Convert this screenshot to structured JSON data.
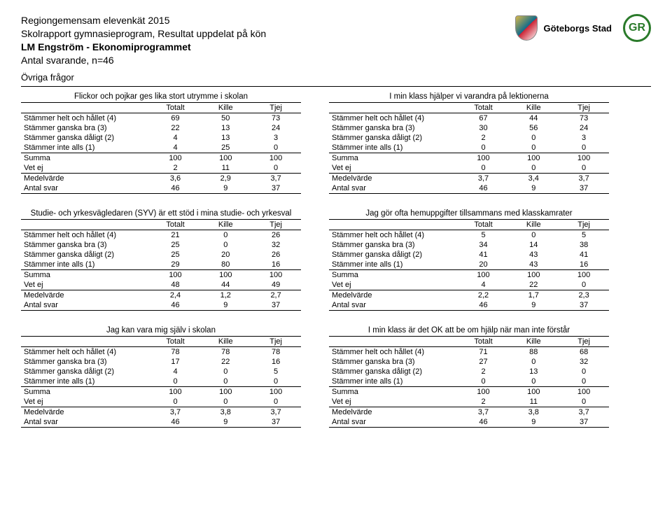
{
  "header": {
    "line1": "Regiongemensam elevenkät 2015",
    "line2": "Skolrapport gymnasieprogram, Resultat uppdelat på kön",
    "line3": "LM Engström - Ekonomiprogrammet",
    "line4": "Antal svarande, n=46",
    "section": "Övriga frågor",
    "logo1_text": "Göteborgs Stad",
    "logo2_text": "GR"
  },
  "columns": [
    "Totalt",
    "Kille",
    "Tjej"
  ],
  "row_labels": [
    "Stämmer helt och hållet (4)",
    "Stämmer ganska bra (3)",
    "Stämmer ganska dåligt (2)",
    "Stämmer inte alls (1)",
    "Summa",
    "Vet ej",
    "Medelvärde",
    "Antal svar"
  ],
  "tables": [
    {
      "left": {
        "title": "Flickor och pojkar ges lika stort utrymme i skolan",
        "rows": [
          [
            "69",
            "50",
            "73"
          ],
          [
            "22",
            "13",
            "24"
          ],
          [
            "4",
            "13",
            "3"
          ],
          [
            "4",
            "25",
            "0"
          ],
          [
            "100",
            "100",
            "100"
          ],
          [
            "2",
            "11",
            "0"
          ],
          [
            "3,6",
            "2,9",
            "3,7"
          ],
          [
            "46",
            "9",
            "37"
          ]
        ]
      },
      "right": {
        "title": "I min klass hjälper vi varandra på lektionerna",
        "rows": [
          [
            "67",
            "44",
            "73"
          ],
          [
            "30",
            "56",
            "24"
          ],
          [
            "2",
            "0",
            "3"
          ],
          [
            "0",
            "0",
            "0"
          ],
          [
            "100",
            "100",
            "100"
          ],
          [
            "0",
            "0",
            "0"
          ],
          [
            "3,7",
            "3,4",
            "3,7"
          ],
          [
            "46",
            "9",
            "37"
          ]
        ]
      }
    },
    {
      "left": {
        "title": "Studie- och yrkesvägledaren (SYV) är ett stöd i mina studie- och yrkesval",
        "rows": [
          [
            "21",
            "0",
            "26"
          ],
          [
            "25",
            "0",
            "32"
          ],
          [
            "25",
            "20",
            "26"
          ],
          [
            "29",
            "80",
            "16"
          ],
          [
            "100",
            "100",
            "100"
          ],
          [
            "48",
            "44",
            "49"
          ],
          [
            "2,4",
            "1,2",
            "2,7"
          ],
          [
            "46",
            "9",
            "37"
          ]
        ]
      },
      "right": {
        "title": "Jag gör ofta hemuppgifter tillsammans med klasskamrater",
        "rows": [
          [
            "5",
            "0",
            "5"
          ],
          [
            "34",
            "14",
            "38"
          ],
          [
            "41",
            "43",
            "41"
          ],
          [
            "20",
            "43",
            "16"
          ],
          [
            "100",
            "100",
            "100"
          ],
          [
            "4",
            "22",
            "0"
          ],
          [
            "2,2",
            "1,7",
            "2,3"
          ],
          [
            "46",
            "9",
            "37"
          ]
        ]
      }
    },
    {
      "left": {
        "title": "Jag kan vara mig själv i skolan",
        "rows": [
          [
            "78",
            "78",
            "78"
          ],
          [
            "17",
            "22",
            "16"
          ],
          [
            "4",
            "0",
            "5"
          ],
          [
            "0",
            "0",
            "0"
          ],
          [
            "100",
            "100",
            "100"
          ],
          [
            "0",
            "0",
            "0"
          ],
          [
            "3,7",
            "3,8",
            "3,7"
          ],
          [
            "46",
            "9",
            "37"
          ]
        ]
      },
      "right": {
        "title": "I min klass är det OK att be om hjälp när man inte förstår",
        "rows": [
          [
            "71",
            "88",
            "68"
          ],
          [
            "27",
            "0",
            "32"
          ],
          [
            "2",
            "13",
            "0"
          ],
          [
            "0",
            "0",
            "0"
          ],
          [
            "100",
            "100",
            "100"
          ],
          [
            "2",
            "11",
            "0"
          ],
          [
            "3,7",
            "3,8",
            "3,7"
          ],
          [
            "46",
            "9",
            "37"
          ]
        ]
      }
    }
  ]
}
